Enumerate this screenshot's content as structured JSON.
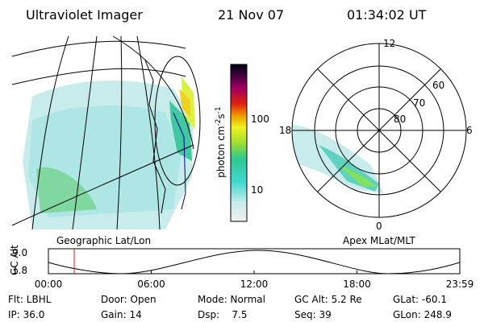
{
  "header": {
    "instrument": "Ultraviolet Imager",
    "date": "21 Nov 07",
    "time": "01:34:02 UT"
  },
  "colorbar": {
    "ticks": [
      "100",
      "10"
    ],
    "units": {
      "base": "photon cm",
      "exp1": "-2",
      "mid": "s",
      "exp2": "-1"
    }
  },
  "polar": {
    "mlt_labels": [
      "12",
      "18",
      "6",
      "0"
    ],
    "mlat_labels": [
      "60",
      "70",
      "80"
    ]
  },
  "panel_labels": {
    "left": "Geographic Lat/Lon",
    "right": "Apex MLat/MLT"
  },
  "orbit": {
    "axis_label": "GC Alt",
    "y_labels": [
      "9.0",
      "1.8"
    ],
    "time_labels": [
      "00:00",
      "06:00",
      "12:00",
      "18:00",
      "23:59"
    ]
  },
  "info": {
    "row1": [
      "Flt: LBHL",
      "Door: Open",
      "Mode: Normal",
      "GC Alt: 5.2 Re",
      "GLat: -60.1"
    ],
    "row2": [
      "IP: 36.0",
      "Gain: 14",
      "Dsp:    7.5",
      "Seq: 39",
      "GLon: 248.9"
    ]
  }
}
